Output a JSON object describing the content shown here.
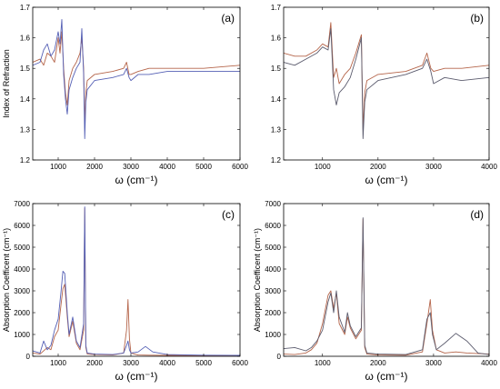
{
  "chart_data": [
    {
      "type": "line",
      "panel_label": "(a)",
      "xlabel": "ω (cm⁻¹)",
      "ylabel": "Index of Refraction",
      "xlim": [
        300,
        6000
      ],
      "ylim": [
        1.2,
        1.7
      ],
      "xticks": [
        1000,
        2000,
        3000,
        4000,
        5000,
        6000
      ],
      "yticks": [
        1.2,
        1.3,
        1.4,
        1.5,
        1.6,
        1.7
      ],
      "grid": false,
      "series": [
        {
          "color": "#b5654a",
          "x": [
            300,
            500,
            600,
            700,
            800,
            900,
            1000,
            1050,
            1100,
            1150,
            1200,
            1250,
            1300,
            1400,
            1500,
            1600,
            1650,
            1700,
            1730,
            1760,
            1800,
            2000,
            2500,
            2800,
            2880,
            2950,
            3000,
            3200,
            3500,
            4000,
            5000,
            6000
          ],
          "y": [
            1.52,
            1.53,
            1.51,
            1.55,
            1.54,
            1.52,
            1.6,
            1.55,
            1.62,
            1.5,
            1.42,
            1.38,
            1.46,
            1.5,
            1.52,
            1.55,
            1.6,
            1.5,
            1.32,
            1.42,
            1.46,
            1.48,
            1.49,
            1.5,
            1.52,
            1.48,
            1.48,
            1.49,
            1.5,
            1.5,
            1.5,
            1.51
          ]
        },
        {
          "color": "#5560b5",
          "x": [
            300,
            500,
            600,
            700,
            800,
            900,
            1000,
            1050,
            1100,
            1150,
            1200,
            1250,
            1300,
            1400,
            1500,
            1600,
            1650,
            1700,
            1730,
            1760,
            1800,
            2000,
            2500,
            2800,
            2880,
            2950,
            3000,
            3200,
            3500,
            4000,
            5000,
            6000
          ],
          "y": [
            1.51,
            1.52,
            1.56,
            1.58,
            1.54,
            1.56,
            1.62,
            1.58,
            1.66,
            1.48,
            1.4,
            1.35,
            1.43,
            1.47,
            1.5,
            1.52,
            1.63,
            1.48,
            1.27,
            1.39,
            1.43,
            1.46,
            1.47,
            1.48,
            1.5,
            1.47,
            1.46,
            1.48,
            1.48,
            1.49,
            1.49,
            1.49
          ]
        }
      ]
    },
    {
      "type": "line",
      "panel_label": "(b)",
      "xlabel": "ω (cm⁻¹)",
      "ylabel": "",
      "xlim": [
        300,
        4000
      ],
      "ylim": [
        1.2,
        1.7
      ],
      "xticks": [
        1000,
        2000,
        3000,
        4000
      ],
      "yticks": [
        1.2,
        1.3,
        1.4,
        1.5,
        1.6,
        1.7
      ],
      "grid": false,
      "series": [
        {
          "color": "#b5654a",
          "x": [
            300,
            500,
            700,
            900,
            1000,
            1100,
            1150,
            1200,
            1250,
            1300,
            1400,
            1500,
            1600,
            1700,
            1730,
            1760,
            1800,
            2000,
            2500,
            2800,
            2880,
            2950,
            3000,
            3200,
            3500,
            4000
          ],
          "y": [
            1.55,
            1.54,
            1.54,
            1.56,
            1.58,
            1.57,
            1.65,
            1.47,
            1.5,
            1.45,
            1.48,
            1.5,
            1.55,
            1.61,
            1.3,
            1.42,
            1.46,
            1.48,
            1.49,
            1.51,
            1.55,
            1.5,
            1.49,
            1.5,
            1.5,
            1.51
          ]
        },
        {
          "color": "#5c5c6e",
          "x": [
            300,
            500,
            700,
            900,
            1000,
            1100,
            1150,
            1200,
            1250,
            1300,
            1400,
            1500,
            1600,
            1700,
            1730,
            1760,
            1800,
            2000,
            2500,
            2800,
            2880,
            2950,
            3000,
            3200,
            3500,
            4000
          ],
          "y": [
            1.52,
            1.51,
            1.53,
            1.55,
            1.57,
            1.56,
            1.63,
            1.43,
            1.38,
            1.42,
            1.44,
            1.47,
            1.53,
            1.6,
            1.27,
            1.39,
            1.43,
            1.46,
            1.48,
            1.5,
            1.53,
            1.49,
            1.45,
            1.47,
            1.46,
            1.47
          ]
        }
      ]
    },
    {
      "type": "line",
      "panel_label": "(c)",
      "xlabel": "ω (cm⁻¹)",
      "ylabel": "Absorption Coefficent (cm⁻¹)",
      "xlim": [
        300,
        6000
      ],
      "ylim": [
        0,
        7000
      ],
      "xticks": [
        1000,
        2000,
        3000,
        4000,
        5000,
        6000
      ],
      "yticks": [
        0,
        1000,
        2000,
        3000,
        4000,
        5000,
        6000,
        7000
      ],
      "grid": false,
      "series": [
        {
          "color": "#b5654a",
          "x": [
            300,
            500,
            700,
            800,
            900,
            1000,
            1080,
            1130,
            1180,
            1250,
            1300,
            1400,
            1500,
            1600,
            1700,
            1730,
            1760,
            1800,
            2000,
            2500,
            2800,
            2880,
            2920,
            2960,
            3000,
            3200,
            3500,
            4000,
            5000,
            6000
          ],
          "y": [
            150,
            100,
            400,
            300,
            900,
            1200,
            2400,
            3100,
            3300,
            1800,
            900,
            1600,
            600,
            300,
            1200,
            6800,
            400,
            100,
            80,
            60,
            150,
            1200,
            2600,
            800,
            150,
            60,
            50,
            40,
            30,
            30
          ]
        },
        {
          "color": "#5560b5",
          "x": [
            300,
            500,
            600,
            700,
            800,
            900,
            1000,
            1080,
            1130,
            1180,
            1250,
            1300,
            1400,
            1500,
            1600,
            1700,
            1730,
            1760,
            1800,
            2000,
            2500,
            2800,
            2880,
            2920,
            2960,
            3000,
            3200,
            3400,
            3600,
            4000,
            5000,
            6000
          ],
          "y": [
            250,
            150,
            700,
            300,
            500,
            1200,
            1700,
            3000,
            3900,
            3800,
            2000,
            1000,
            1800,
            700,
            400,
            1500,
            6850,
            500,
            150,
            100,
            80,
            150,
            500,
            700,
            300,
            150,
            200,
            450,
            200,
            80,
            50,
            40
          ]
        }
      ]
    },
    {
      "type": "line",
      "panel_label": "(d)",
      "xlabel": "ω (cm⁻¹)",
      "ylabel": "Absorption Coefficent (cm⁻¹)",
      "xlim": [
        300,
        4000
      ],
      "ylim": [
        0,
        7000
      ],
      "xticks": [
        1000,
        2000,
        3000,
        4000
      ],
      "yticks": [
        0,
        1000,
        2000,
        3000,
        4000,
        5000,
        6000,
        7000
      ],
      "grid": false,
      "series": [
        {
          "color": "#b5654a",
          "x": [
            300,
            500,
            700,
            800,
            900,
            1000,
            1100,
            1150,
            1200,
            1250,
            1300,
            1400,
            1450,
            1500,
            1600,
            1700,
            1730,
            1760,
            1800,
            2000,
            2500,
            2800,
            2880,
            2940,
            2980,
            3050,
            3200,
            3400,
            3600,
            4000
          ],
          "y": [
            100,
            80,
            150,
            300,
            600,
            1500,
            2800,
            3000,
            2200,
            2900,
            1500,
            1000,
            1800,
            1300,
            800,
            1200,
            6300,
            400,
            100,
            60,
            50,
            200,
            1500,
            2600,
            1200,
            300,
            150,
            200,
            150,
            100
          ]
        },
        {
          "color": "#5c5c6e",
          "x": [
            300,
            500,
            700,
            800,
            900,
            1000,
            1100,
            1150,
            1200,
            1250,
            1300,
            1400,
            1450,
            1500,
            1600,
            1700,
            1730,
            1760,
            1800,
            2000,
            2500,
            2800,
            2880,
            2940,
            2980,
            3050,
            3200,
            3400,
            3600,
            3800,
            4000
          ],
          "y": [
            350,
            400,
            250,
            400,
            700,
            1200,
            2500,
            2900,
            2000,
            3000,
            1800,
            1100,
            2000,
            1400,
            900,
            1300,
            6350,
            500,
            150,
            100,
            80,
            300,
            1700,
            2000,
            1000,
            300,
            600,
            1050,
            700,
            150,
            80
          ]
        }
      ]
    }
  ]
}
